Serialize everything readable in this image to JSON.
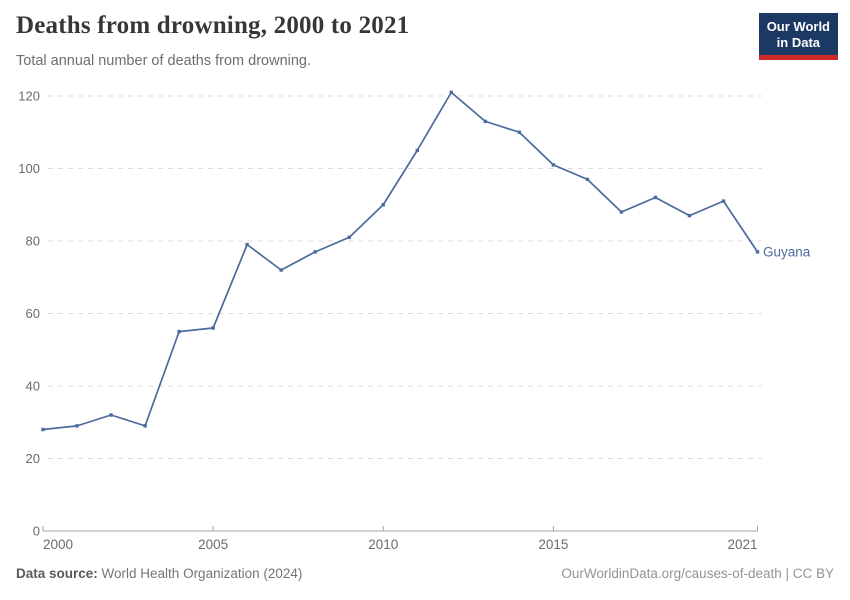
{
  "header": {
    "logo": {
      "line1": "Our World",
      "line2": "in Data"
    }
  },
  "chart_data": {
    "type": "line",
    "title": "Deaths from drowning, 2000 to 2021",
    "subtitle": "Total annual number of deaths from drowning.",
    "xlabel": "",
    "ylabel": "",
    "xlim": [
      2000,
      2021
    ],
    "ylim": [
      0,
      120
    ],
    "x_ticks": [
      2000,
      2005,
      2010,
      2015,
      2021
    ],
    "y_ticks": [
      0,
      20,
      40,
      60,
      80,
      100,
      120
    ],
    "grid": "horizontal-dashed",
    "legend_position": "end-of-line-label",
    "series": [
      {
        "name": "Guyana",
        "color": "#4c6a9c",
        "years": [
          2000,
          2001,
          2002,
          2003,
          2004,
          2005,
          2006,
          2007,
          2008,
          2009,
          2010,
          2011,
          2012,
          2013,
          2014,
          2015,
          2016,
          2017,
          2018,
          2019,
          2020,
          2021
        ],
        "values": [
          28,
          29,
          32,
          29,
          55,
          56,
          79,
          72,
          77,
          81,
          90,
          105,
          121,
          113,
          110,
          101,
          97,
          88,
          92,
          87,
          91,
          77
        ]
      }
    ],
    "axis_colors": {
      "tick_label": "#6b6b6b",
      "gridline": "#dcdcdc",
      "axis_line": "#a3a3a3"
    }
  },
  "footer": {
    "source_label": "Data source:",
    "source_value": " World Health Organization (2024)",
    "attribution": "OurWorldinData.org/causes-of-death | CC BY"
  },
  "brand_colors": {
    "logo_navy": "#1b3963",
    "logo_red": "#cc2a26",
    "series_blue": "#4c6a9c"
  }
}
